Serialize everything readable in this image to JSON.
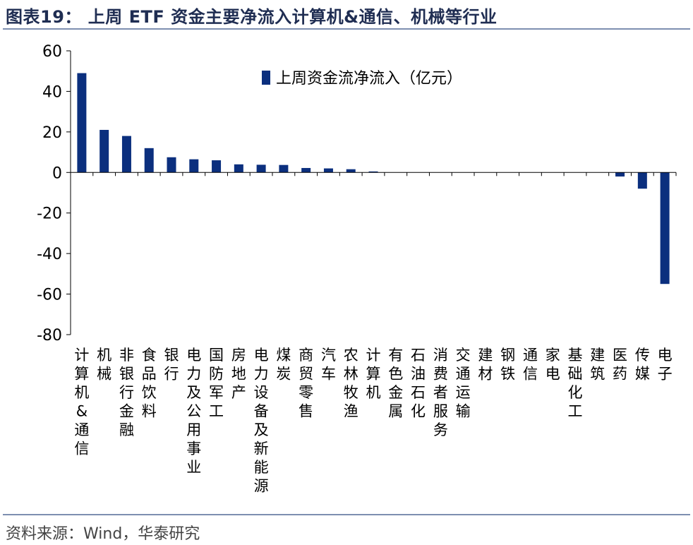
{
  "figure": {
    "title": "图表19： 上周 ETF 资金主要净流入计算机&通信、机械等行业",
    "source": "资料来源：Wind，华泰研究"
  },
  "colors": {
    "bar": "#0b2f7e",
    "title": "#1f2d52",
    "rule": "#7d8fb0",
    "axis": "#000000"
  },
  "chart_data": {
    "type": "bar",
    "title": "",
    "xlabel": "",
    "ylabel": "",
    "ylim": [
      -80,
      60
    ],
    "yticks": [
      60,
      40,
      20,
      0,
      -20,
      -40,
      -60,
      -80
    ],
    "grid": false,
    "legend_position": "top-center",
    "categories": [
      "计算机&通信",
      "机械",
      "非银行金融",
      "食品饮料",
      "银行",
      "电力及公用事业",
      "国防军工",
      "房地产",
      "电力设备及新能源",
      "煤炭",
      "商贸零售",
      "汽车",
      "农林牧渔",
      "计算机",
      "有色金属",
      "石油石化",
      "消费者服务",
      "交通运输",
      "建材",
      "钢铁",
      "通信",
      "家电",
      "基础化工",
      "建筑",
      "医药",
      "传媒",
      "电子"
    ],
    "series": [
      {
        "name": "上周资金流净流入（亿元）",
        "values": [
          49,
          21,
          18,
          12,
          7.5,
          6.5,
          6,
          4,
          3.8,
          3.7,
          2.2,
          2,
          1.6,
          0.5,
          0,
          0,
          0,
          0,
          0,
          0,
          0,
          0,
          0,
          0,
          -2,
          -8,
          -55
        ]
      }
    ]
  }
}
